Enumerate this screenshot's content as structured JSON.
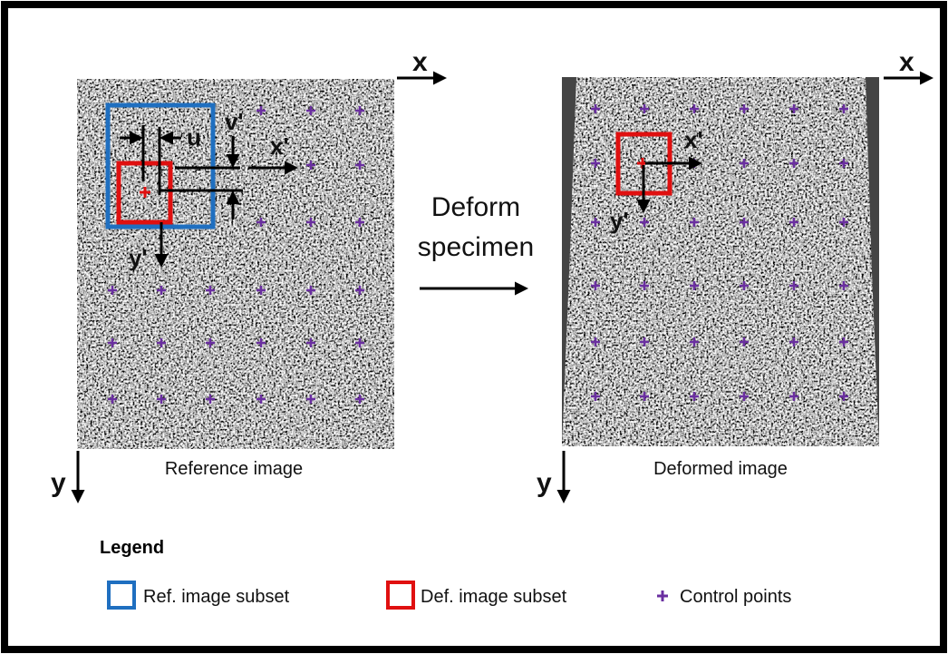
{
  "reference_panel": {
    "caption": "Reference image",
    "axis_x": "x",
    "axis_y": "y",
    "u_label": "u",
    "v_label": "v'",
    "x_local": "x'",
    "y_local": "y'"
  },
  "transition": {
    "lines": [
      "Deform",
      "specimen"
    ]
  },
  "deformed_panel": {
    "caption": "Deformed image",
    "axis_x": "x",
    "axis_y": "y",
    "x_local": "x'",
    "y_local": "y'"
  },
  "legend": {
    "title": "Legend",
    "items": [
      {
        "label": "Ref. image subset"
      },
      {
        "label": "Def. image subset"
      },
      {
        "label": "Control points"
      }
    ]
  }
}
